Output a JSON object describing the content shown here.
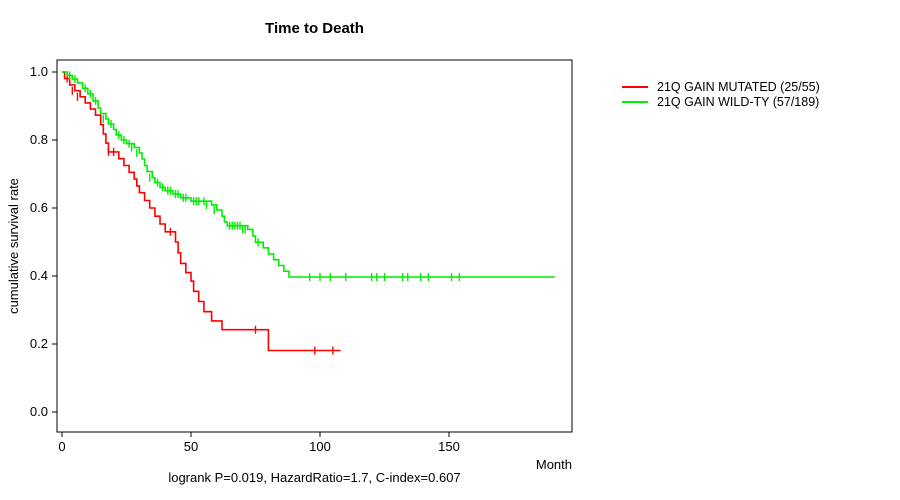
{
  "title": "Time to Death",
  "caption": "logrank P=0.019, HazardRatio=1.7, C-index=0.607",
  "chart_data": {
    "type": "line",
    "subtype": "kaplan-meier-survival-step",
    "title": "Time to Death",
    "xlabel": "Month",
    "ylabel": "cumulative survival rate",
    "xlim": [
      0,
      197
    ],
    "ylim": [
      0,
      1.0
    ],
    "xticks": [
      0,
      50,
      100,
      150
    ],
    "yticks": [
      "0.0",
      "0.2",
      "0.4",
      "0.6",
      "0.8",
      "1.0"
    ],
    "grid": false,
    "legend_position": "right-outside",
    "annotation": "logrank P=0.019, HazardRatio=1.7, C-index=0.607",
    "series": [
      {
        "name": "21Q GAIN MUTATED (25/55)",
        "color": "#ff0000",
        "steps": [
          [
            0,
            1.0
          ],
          [
            1,
            0.981
          ],
          [
            3,
            0.962
          ],
          [
            5,
            0.945
          ],
          [
            7,
            0.927
          ],
          [
            9,
            0.909
          ],
          [
            11,
            0.891
          ],
          [
            13,
            0.873
          ],
          [
            15,
            0.845
          ],
          [
            16,
            0.818
          ],
          [
            17,
            0.791
          ],
          [
            18,
            0.765
          ],
          [
            22,
            0.745
          ],
          [
            24,
            0.725
          ],
          [
            26,
            0.705
          ],
          [
            28,
            0.685
          ],
          [
            29,
            0.665
          ],
          [
            30,
            0.645
          ],
          [
            32,
            0.622
          ],
          [
            34,
            0.6
          ],
          [
            36,
            0.576
          ],
          [
            38,
            0.553
          ],
          [
            40,
            0.53
          ],
          [
            44,
            0.5
          ],
          [
            45,
            0.468
          ],
          [
            46,
            0.437
          ],
          [
            48,
            0.41
          ],
          [
            50,
            0.385
          ],
          [
            51,
            0.355
          ],
          [
            53,
            0.325
          ],
          [
            55,
            0.295
          ],
          [
            58,
            0.268
          ],
          [
            62,
            0.242
          ],
          [
            80,
            0.181
          ],
          [
            108,
            0.181
          ]
        ],
        "censors": [
          [
            2,
            0.981
          ],
          [
            4,
            0.945
          ],
          [
            6,
            0.927
          ],
          [
            18,
            0.765
          ],
          [
            20,
            0.765
          ],
          [
            42,
            0.53
          ],
          [
            75,
            0.242
          ],
          [
            98,
            0.181
          ],
          [
            105,
            0.181
          ]
        ]
      },
      {
        "name": "21Q GAIN WILD-TY (57/189)",
        "color": "#00ee00",
        "steps": [
          [
            0,
            1.0
          ],
          [
            2,
            0.99
          ],
          [
            4,
            0.979
          ],
          [
            6,
            0.968
          ],
          [
            8,
            0.952
          ],
          [
            10,
            0.936
          ],
          [
            12,
            0.915
          ],
          [
            14,
            0.894
          ],
          [
            15,
            0.878
          ],
          [
            17,
            0.862
          ],
          [
            18,
            0.847
          ],
          [
            20,
            0.831
          ],
          [
            21,
            0.815
          ],
          [
            23,
            0.8
          ],
          [
            25,
            0.789
          ],
          [
            28,
            0.778
          ],
          [
            30,
            0.762
          ],
          [
            31,
            0.744
          ],
          [
            32,
            0.725
          ],
          [
            33,
            0.707
          ],
          [
            35,
            0.689
          ],
          [
            36,
            0.675
          ],
          [
            38,
            0.661
          ],
          [
            40,
            0.651
          ],
          [
            43,
            0.641
          ],
          [
            46,
            0.63
          ],
          [
            50,
            0.62
          ],
          [
            58,
            0.609
          ],
          [
            60,
            0.594
          ],
          [
            62,
            0.576
          ],
          [
            63,
            0.559
          ],
          [
            64,
            0.548
          ],
          [
            72,
            0.537
          ],
          [
            74,
            0.518
          ],
          [
            75,
            0.499
          ],
          [
            78,
            0.483
          ],
          [
            80,
            0.465
          ],
          [
            82,
            0.448
          ],
          [
            84,
            0.431
          ],
          [
            86,
            0.414
          ],
          [
            88,
            0.397
          ],
          [
            191,
            0.397
          ]
        ],
        "censors": [
          [
            3,
            0.99
          ],
          [
            5,
            0.979
          ],
          [
            9,
            0.952
          ],
          [
            11,
            0.936
          ],
          [
            13,
            0.915
          ],
          [
            16,
            0.862
          ],
          [
            19,
            0.847
          ],
          [
            22,
            0.815
          ],
          [
            24,
            0.8
          ],
          [
            26,
            0.789
          ],
          [
            27,
            0.778
          ],
          [
            29,
            0.762
          ],
          [
            34,
            0.689
          ],
          [
            37,
            0.675
          ],
          [
            39,
            0.661
          ],
          [
            41,
            0.651
          ],
          [
            42,
            0.651
          ],
          [
            44,
            0.641
          ],
          [
            45,
            0.641
          ],
          [
            47,
            0.63
          ],
          [
            48,
            0.63
          ],
          [
            51,
            0.62
          ],
          [
            52,
            0.62
          ],
          [
            53,
            0.62
          ],
          [
            55,
            0.62
          ],
          [
            56,
            0.609
          ],
          [
            59,
            0.594
          ],
          [
            65,
            0.548
          ],
          [
            66,
            0.548
          ],
          [
            67,
            0.548
          ],
          [
            68,
            0.548
          ],
          [
            69,
            0.548
          ],
          [
            70,
            0.537
          ],
          [
            71,
            0.537
          ],
          [
            76,
            0.499
          ],
          [
            96,
            0.397
          ],
          [
            100,
            0.397
          ],
          [
            104,
            0.397
          ],
          [
            110,
            0.397
          ],
          [
            120,
            0.397
          ],
          [
            122,
            0.397
          ],
          [
            125,
            0.397
          ],
          [
            132,
            0.397
          ],
          [
            134,
            0.397
          ],
          [
            139,
            0.397
          ],
          [
            142,
            0.397
          ],
          [
            151,
            0.397
          ],
          [
            154,
            0.397
          ]
        ]
      }
    ]
  }
}
